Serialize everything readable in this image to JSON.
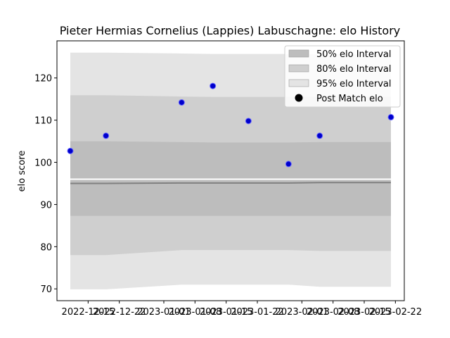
{
  "chart_data": {
    "type": "line",
    "title": "Pieter Hermias Cornelius (Lappies) Labuschagne: elo History",
    "xlabel": "",
    "ylabel": "elo score",
    "xlim": [
      "2022-12-08",
      "2023-02-24"
    ],
    "ylim": [
      67.2,
      128.8
    ],
    "x_ticks": [
      "2022-12-15",
      "2022-12-22",
      "2023-01-01",
      "2023-01-08",
      "2023-01-15",
      "2023-01-22",
      "2023-02-01",
      "2023-02-08",
      "2023-02-15",
      "2023-02-22"
    ],
    "y_ticks": [
      70,
      80,
      90,
      100,
      110,
      120
    ],
    "legend_position": "top-right",
    "grid": false,
    "dates": [
      "2022-12-11",
      "2022-12-19",
      "2023-01-05",
      "2023-01-12",
      "2023-01-20",
      "2023-01-29",
      "2023-02-05",
      "2023-02-21"
    ],
    "series": [
      {
        "name": "Post Match elo",
        "kind": "scatter",
        "values": [
          102.7,
          106.3,
          114.2,
          118.1,
          109.8,
          99.6,
          106.3,
          110.7
        ],
        "color": "#0000cc",
        "edge_color": "#6666ff"
      },
      {
        "name": "95% elo Interval",
        "kind": "band",
        "color": "#e4e4e4",
        "upper": [
          126.0,
          126.0,
          125.8,
          125.7,
          125.7,
          125.7,
          125.7,
          125.7
        ],
        "lower": [
          69.9,
          69.9,
          71.0,
          71.0,
          71.0,
          71.0,
          70.5,
          70.5
        ]
      },
      {
        "name": "80% elo Interval",
        "kind": "band",
        "color": "#cfcfcf",
        "upper": [
          115.9,
          115.9,
          115.6,
          115.5,
          115.5,
          115.5,
          115.5,
          115.5
        ],
        "lower": [
          78.0,
          78.0,
          79.2,
          79.2,
          79.2,
          79.2,
          79.0,
          79.0
        ]
      },
      {
        "name": "50% elo Interval",
        "kind": "band",
        "color": "#bdbdbd",
        "upper": [
          105.0,
          105.0,
          104.8,
          104.7,
          104.7,
          104.7,
          104.8,
          104.8
        ],
        "lower": [
          87.3,
          87.3,
          87.3,
          87.3,
          87.3,
          87.3,
          87.3,
          87.3
        ]
      },
      {
        "name": "",
        "kind": "line",
        "color": "#ffffff",
        "values": [
          96.0,
          96.0,
          96.0,
          96.0,
          96.0,
          96.0,
          96.0,
          96.0
        ]
      },
      {
        "name": "",
        "kind": "line",
        "color": "#808080",
        "values": [
          95.0,
          95.0,
          95.1,
          95.1,
          95.1,
          95.1,
          95.2,
          95.2
        ]
      }
    ],
    "legend": [
      "50% elo Interval",
      "80% elo Interval",
      "95% elo Interval",
      "Post Match elo"
    ]
  }
}
